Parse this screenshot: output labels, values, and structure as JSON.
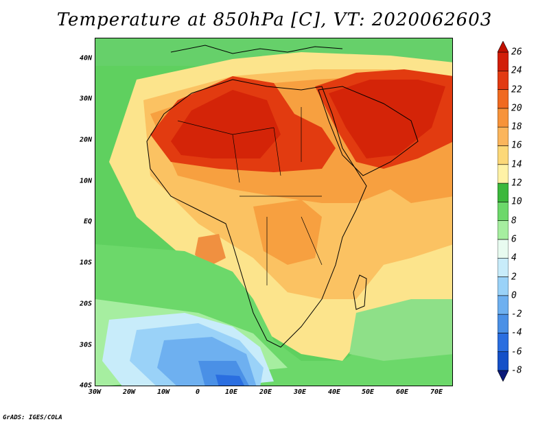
{
  "title": "Temperature at 850hPa [C], VT: 2020062603",
  "credit": "GrADS: IGES/COLA",
  "map": {
    "lat_labels": [
      "40N",
      "30N",
      "20N",
      "10N",
      "EQ",
      "10S",
      "20S",
      "30S",
      "40S"
    ],
    "lon_labels": [
      "30W",
      "20W",
      "10W",
      "0",
      "10E",
      "20E",
      "30E",
      "40E",
      "50E",
      "60E",
      "70E"
    ],
    "lat_range": [
      -40,
      45
    ],
    "lon_range": [
      -30,
      75
    ],
    "field": "Temperature at 850hPa",
    "units": "C"
  },
  "colorbar": {
    "labels": [
      "26",
      "24",
      "22",
      "20",
      "18",
      "16",
      "14",
      "12",
      "10",
      "8",
      "6",
      "4",
      "2",
      "0",
      "-2",
      "-4",
      "-6",
      "-8"
    ],
    "colors": [
      "#0a1a7a",
      "#1450c8",
      "#2a6ee0",
      "#4a90e6",
      "#6eb0f0",
      "#9ad2f8",
      "#c8ecfa",
      "#e8fbf0",
      "#a6eea0",
      "#6cd86a",
      "#3cb83c",
      "#fff2a6",
      "#fcd878",
      "#fbb55c",
      "#f7933a",
      "#f06a20",
      "#e23a12",
      "#d21e08",
      "#c01000"
    ]
  }
}
